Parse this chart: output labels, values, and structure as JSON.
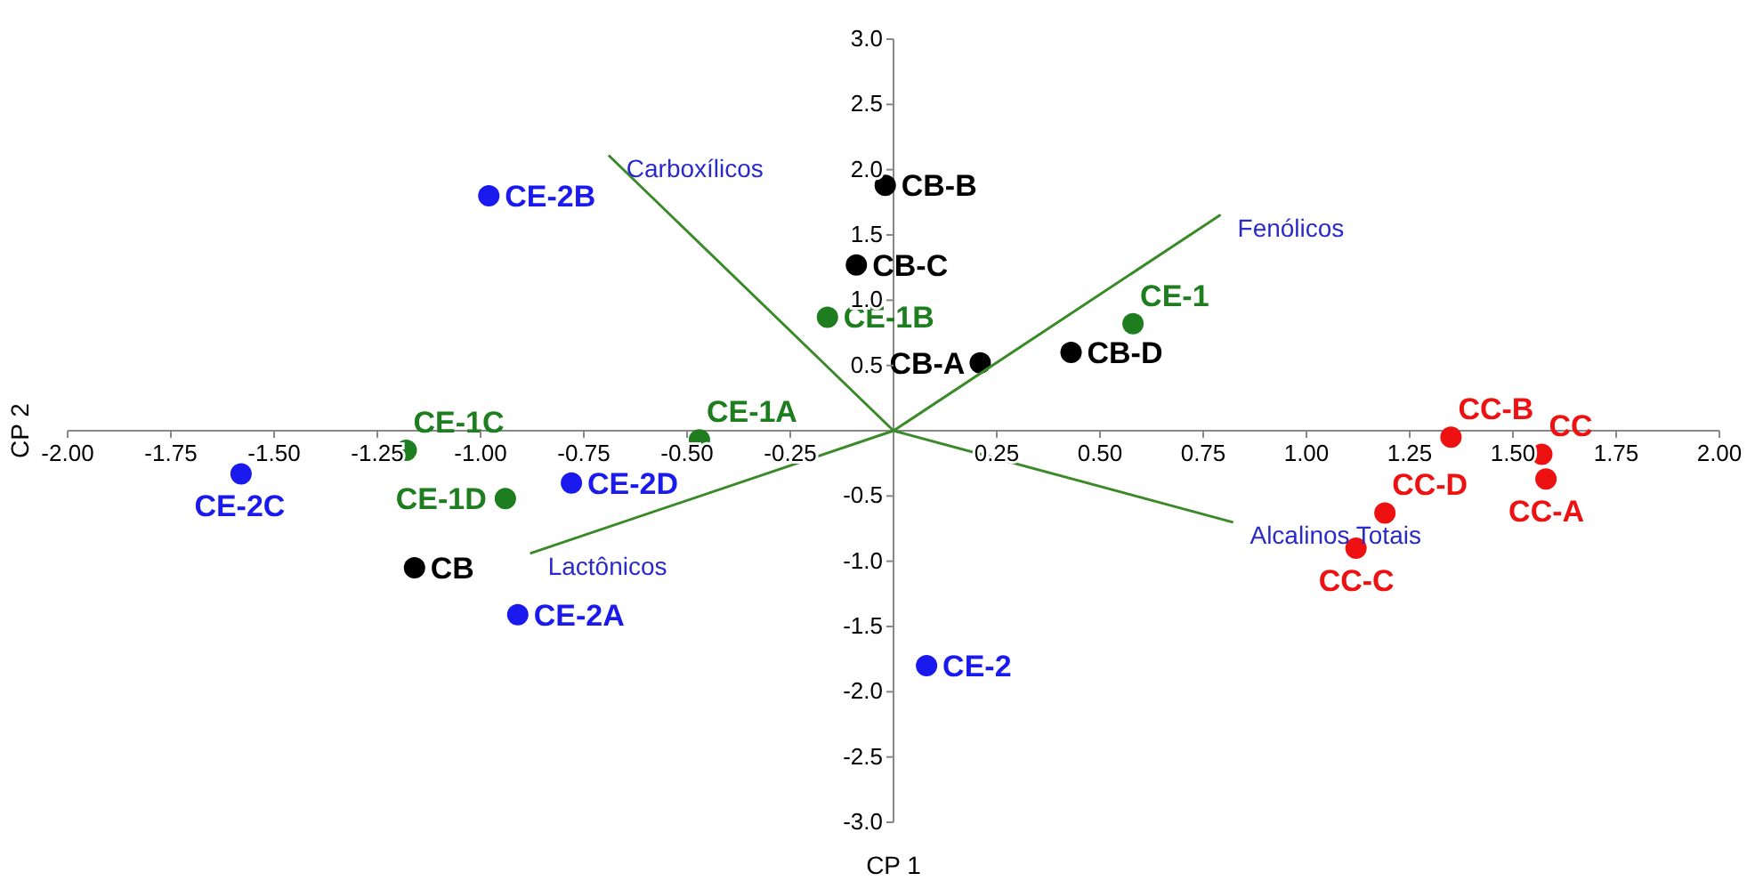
{
  "chart_data": {
    "type": "scatter",
    "xlabel": "CP 1",
    "ylabel": "CP 2",
    "xlim": [
      -2,
      2
    ],
    "ylim": [
      -3,
      3
    ],
    "xticks": [
      {
        "value": -2,
        "label": "-2.00"
      },
      {
        "value": -1.75,
        "label": "-1.75"
      },
      {
        "value": -1.5,
        "label": "-1.50"
      },
      {
        "value": -1.25,
        "label": "-1.25"
      },
      {
        "value": -1,
        "label": "-1.00"
      },
      {
        "value": -0.75,
        "label": "-0.75"
      },
      {
        "value": -0.5,
        "label": "-0.50"
      },
      {
        "value": -0.25,
        "label": "-0.25"
      },
      {
        "value": 0.25,
        "label": "0.25"
      },
      {
        "value": 0.5,
        "label": "0.50"
      },
      {
        "value": 0.75,
        "label": "0.75"
      },
      {
        "value": 1,
        "label": "1.00"
      },
      {
        "value": 1.25,
        "label": "1.25"
      },
      {
        "value": 1.5,
        "label": "1.50"
      },
      {
        "value": 1.75,
        "label": "1.75"
      },
      {
        "value": 2,
        "label": "2.00"
      }
    ],
    "yticks": [
      {
        "value": -3,
        "label": "-3.0"
      },
      {
        "value": -2.5,
        "label": "-2.5"
      },
      {
        "value": -2,
        "label": "-2.0"
      },
      {
        "value": -1.5,
        "label": "-1.5"
      },
      {
        "value": -1,
        "label": "-1.0"
      },
      {
        "value": -0.5,
        "label": "-0.5"
      },
      {
        "value": 0.5,
        "label": "0.5"
      },
      {
        "value": 1,
        "label": "1.0"
      },
      {
        "value": 1.5,
        "label": "1.5"
      },
      {
        "value": 2,
        "label": "2.0"
      },
      {
        "value": 2.5,
        "label": "2.5"
      },
      {
        "value": 3,
        "label": "3.0"
      }
    ],
    "grid": false,
    "marker": "circle",
    "series": [
      {
        "type": "scatter",
        "color": "#000000",
        "x": [
          -0.02,
          -0.09,
          0.21,
          0.43,
          -1.16
        ],
        "values": [
          1.88,
          1.27,
          0.52,
          0.6,
          -1.05
        ],
        "value_labels": [
          "CB-B",
          "CB-C",
          "CB-A",
          "CB-D",
          "CB"
        ]
      },
      {
        "type": "scatter",
        "color": "#1a1aee",
        "x": [
          -0.98,
          -1.58,
          -0.78,
          -0.91,
          0.08
        ],
        "values": [
          1.8,
          -0.33,
          -0.4,
          -1.41,
          -1.8
        ],
        "value_labels": [
          "CE-2B",
          "CE-2C",
          "CE-2D",
          "CE-2A",
          "CE-2"
        ]
      },
      {
        "type": "scatter",
        "color": "#1e7d1e",
        "x": [
          -0.16,
          0.58,
          -0.47,
          -1.18,
          -0.94
        ],
        "values": [
          0.87,
          0.82,
          -0.07,
          -0.15,
          -0.52
        ],
        "value_labels": [
          "CE-1B",
          "CE-1",
          "CE-1A",
          "CE-1C",
          "CE-1D"
        ]
      },
      {
        "type": "scatter",
        "color": "#ee1111",
        "x": [
          1.35,
          1.57,
          1.58,
          1.19,
          1.12
        ],
        "values": [
          -0.05,
          -0.18,
          -0.37,
          -0.63,
          -0.9
        ],
        "value_labels": [
          "CC-B",
          "CC",
          "CC-A",
          "CC-D",
          "CC-C"
        ]
      },
      {
        "type": "line",
        "color": "#3a8a2a",
        "marker": "none",
        "x": [
          -0.69,
          0,
          0.79,
          0,
          0.82,
          0,
          -0.88
        ],
        "values": [
          2.11,
          0,
          1.65,
          0,
          -0.7,
          0,
          -0.94
        ]
      }
    ],
    "annotations": [
      {
        "text": "Carboxílicos",
        "x": -0.69,
        "y": 2.11
      },
      {
        "text": "Fenólicos",
        "x": 0.79,
        "y": 1.65
      },
      {
        "text": "Alcalinos Totais",
        "x": 0.82,
        "y": -0.7
      },
      {
        "text": "Lactônicos",
        "x": -0.88,
        "y": -0.94
      }
    ]
  }
}
